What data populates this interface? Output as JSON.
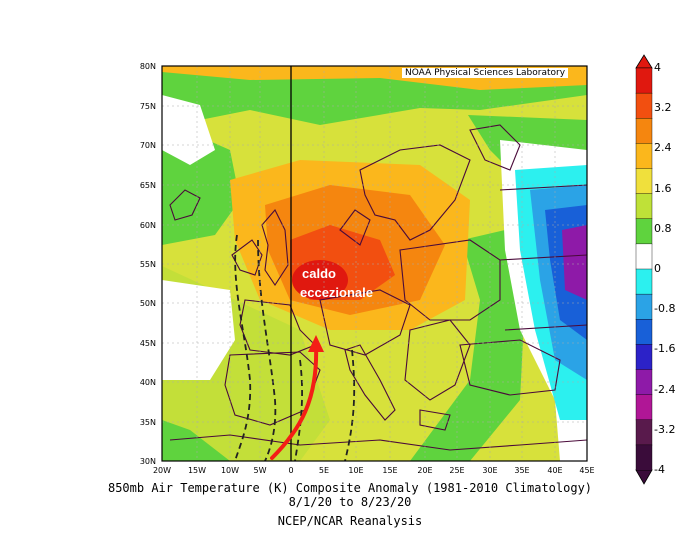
{
  "credit": "NOAA Physical Sciences Laboratory",
  "captions": {
    "line1": "850mb Air Temperature (K) Composite Anomaly (1981-2010 Climatology)",
    "line2": "8/1/20 to 8/23/20",
    "line3": "NCEP/NCAR Reanalysis"
  },
  "annotation": {
    "line1": "caldo",
    "line2": "eccezionale"
  },
  "lat_ticks": [
    "80N",
    "75N",
    "70N",
    "65N",
    "60N",
    "55N",
    "50N",
    "45N",
    "40N",
    "35N",
    "30N"
  ],
  "lon_ticks": [
    "20W",
    "15W",
    "10W",
    "5W",
    "0",
    "5E",
    "10E",
    "15E",
    "20E",
    "25E",
    "30E",
    "35E",
    "40E",
    "45E"
  ],
  "colorbar": {
    "labels": [
      "4",
      "3.2",
      "2.4",
      "1.6",
      "0.8",
      "0",
      "-0.8",
      "-1.6",
      "-2.4",
      "-3.2",
      "-4"
    ],
    "colors": [
      "#e0180f",
      "#f24f10",
      "#f5860f",
      "#fbb71c",
      "#f0e03c",
      "#bfe138",
      "#5fd33e",
      "#ffffff",
      "#2cf0ef",
      "#2ba3e6",
      "#1860d8",
      "#2c22c8",
      "#8e1aa8",
      "#b01696",
      "#591a4c",
      "#3a0c3a"
    ]
  },
  "colors": {
    "arrow": "#f41e16",
    "frame": "#000000",
    "land_border": "#4a0a3a"
  }
}
